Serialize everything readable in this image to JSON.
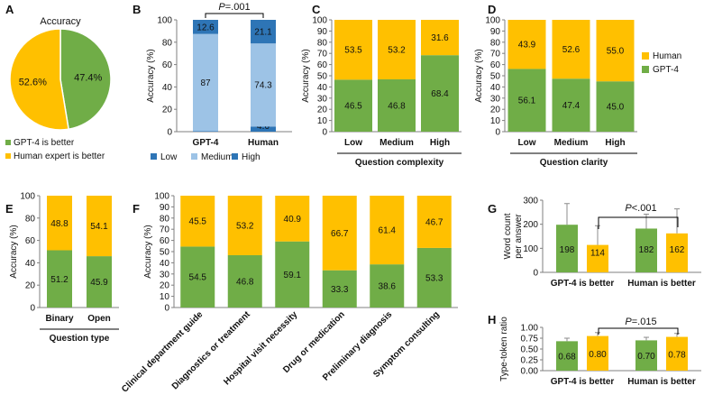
{
  "colors": {
    "green": "#70AD47",
    "yellow": "#FFC000",
    "low": "#2E75B6",
    "medium": "#9DC3E6",
    "high": "#2E75B6",
    "axis": "#7f7f7f",
    "text": "#111111",
    "error_bar": "#8c8c8c"
  },
  "legend": {
    "human": "Human",
    "gpt4": "GPT-4"
  },
  "chart_data": [
    {
      "panel": "A",
      "type": "pie",
      "title": "Accuracy",
      "slices": [
        {
          "label": "GPT-4 is better",
          "value": 47.4,
          "display": "47.4%",
          "color": "#70AD47"
        },
        {
          "label": "Human expert is better",
          "value": 52.6,
          "display": "52.6%",
          "color": "#FFC000"
        }
      ]
    },
    {
      "panel": "B",
      "type": "bar",
      "stacked": true,
      "ylabel": "Accuracy (%)",
      "ylim": [
        0,
        100
      ],
      "yticks": [
        0,
        20,
        40,
        60,
        80,
        100
      ],
      "categories": [
        "GPT-4",
        "Human"
      ],
      "series": [
        {
          "name": "Low",
          "values": [
            0.4,
            4.6
          ],
          "labels": [
            "0.4",
            "4.6"
          ],
          "color": "#2E75B6"
        },
        {
          "name": "Medium",
          "values": [
            87,
            74.3
          ],
          "labels": [
            "87",
            "74.3"
          ],
          "color": "#9DC3E6"
        },
        {
          "name": "High",
          "values": [
            12.6,
            21.1
          ],
          "labels": [
            "12.6",
            "21.1"
          ],
          "color": "#2E75B6"
        }
      ],
      "annotation": "P=.001"
    },
    {
      "panel": "C",
      "type": "bar",
      "stacked": true,
      "ylabel": "Accuracy (%)",
      "xlabel": "Question complexity",
      "ylim": [
        0,
        100
      ],
      "yticks": [
        0,
        10,
        20,
        30,
        40,
        50,
        60,
        70,
        80,
        90,
        100
      ],
      "categories": [
        "Low",
        "Medium",
        "High"
      ],
      "series": [
        {
          "name": "GPT-4",
          "values": [
            46.5,
            46.8,
            68.4
          ],
          "labels": [
            "46.5",
            "46.8",
            "68.4"
          ]
        },
        {
          "name": "Human",
          "values": [
            53.5,
            53.2,
            31.6
          ],
          "labels": [
            "53.5",
            "53.2",
            "31.6"
          ]
        }
      ]
    },
    {
      "panel": "D",
      "type": "bar",
      "stacked": true,
      "ylabel": "Accuracy (%)",
      "xlabel": "Question clarity",
      "ylim": [
        0,
        100
      ],
      "yticks": [
        0,
        10,
        20,
        30,
        40,
        50,
        60,
        70,
        80,
        90,
        100
      ],
      "categories": [
        "Low",
        "Medium",
        "High"
      ],
      "series": [
        {
          "name": "GPT-4",
          "values": [
            56.1,
            47.4,
            45.0
          ],
          "labels": [
            "56.1",
            "47.4",
            "45.0"
          ]
        },
        {
          "name": "Human",
          "values": [
            43.9,
            52.6,
            55.0
          ],
          "labels": [
            "43.9",
            "52.6",
            "55.0"
          ]
        }
      ]
    },
    {
      "panel": "E",
      "type": "bar",
      "stacked": true,
      "ylabel": "Accuracy (%)",
      "xlabel": "Question type",
      "ylim": [
        0,
        100
      ],
      "yticks": [
        0,
        20,
        40,
        60,
        80,
        100
      ],
      "categories": [
        "Binary",
        "Open"
      ],
      "series": [
        {
          "name": "GPT-4",
          "values": [
            51.2,
            45.9
          ],
          "labels": [
            "51.2",
            "45.9"
          ]
        },
        {
          "name": "Human",
          "values": [
            48.8,
            54.1
          ],
          "labels": [
            "48.8",
            "54.1"
          ]
        }
      ]
    },
    {
      "panel": "F",
      "type": "bar",
      "stacked": true,
      "ylabel": "Accuracy (%)",
      "ylim": [
        0,
        100
      ],
      "yticks": [
        0,
        10,
        20,
        30,
        40,
        50,
        60,
        70,
        80,
        90,
        100
      ],
      "categories": [
        "Clinical department guide",
        "Diagnostics or treatment",
        "Hospital visit necessity",
        "Drug or medication",
        "Preliminary diagnosis",
        "Symptom consulting"
      ],
      "series": [
        {
          "name": "GPT-4",
          "values": [
            54.5,
            46.8,
            59.1,
            33.3,
            38.6,
            53.3
          ],
          "labels": [
            "54.5",
            "46.8",
            "59.1",
            "33.3",
            "38.6",
            "53.3"
          ]
        },
        {
          "name": "Human",
          "values": [
            45.5,
            53.2,
            40.9,
            66.7,
            61.4,
            46.7
          ],
          "labels": [
            "45.5",
            "53.2",
            "40.9",
            "66.7",
            "61.4",
            "46.7"
          ]
        }
      ]
    },
    {
      "panel": "G",
      "type": "bar",
      "ylabel": "Word count per answer",
      "ylim": [
        0,
        300
      ],
      "yticks": [
        0,
        100,
        200,
        300
      ],
      "categories": [
        "GPT-4 is better",
        "Human is better"
      ],
      "series": [
        {
          "name": "GPT-4",
          "values": [
            198,
            182
          ],
          "labels": [
            "198",
            "182"
          ],
          "errors": [
            88,
            60
          ]
        },
        {
          "name": "Human",
          "values": [
            114,
            162
          ],
          "labels": [
            "114",
            "162"
          ],
          "errors": [
            80,
            102
          ]
        }
      ],
      "annotation": "P<.001"
    },
    {
      "panel": "H",
      "type": "bar",
      "ylabel": "Type-token ratio",
      "ylim": [
        0,
        1
      ],
      "yticks": [
        0,
        0.25,
        0.5,
        0.75,
        1
      ],
      "ytick_labels": [
        "0.00",
        "0.25",
        "0.50",
        "0.75",
        "1.00"
      ],
      "categories": [
        "GPT-4 is better",
        "Human is better"
      ],
      "series": [
        {
          "name": "GPT-4",
          "values": [
            0.68,
            0.7
          ],
          "labels": [
            "0.68",
            "0.70"
          ],
          "errors": [
            0.07,
            0.07
          ]
        },
        {
          "name": "Human",
          "values": [
            0.8,
            0.78
          ],
          "labels": [
            "0.80",
            "0.78"
          ],
          "errors": [
            0.08,
            0.08
          ]
        }
      ],
      "annotation": "P=.015"
    }
  ]
}
